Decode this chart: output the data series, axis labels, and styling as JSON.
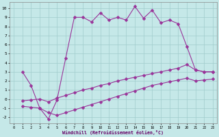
{
  "xlabel": "Windchill (Refroidissement éolien,°C)",
  "bg_color": "#c5e8e8",
  "grid_color": "#a0cccc",
  "line_color": "#993399",
  "xlim": [
    -0.5,
    23.5
  ],
  "ylim": [
    -2.7,
    10.7
  ],
  "xticks": [
    0,
    1,
    2,
    3,
    4,
    5,
    6,
    7,
    8,
    9,
    10,
    11,
    12,
    13,
    14,
    15,
    16,
    17,
    18,
    19,
    20,
    21,
    22,
    23
  ],
  "yticks": [
    -2,
    -1,
    0,
    1,
    2,
    3,
    4,
    5,
    6,
    7,
    8,
    9,
    10
  ],
  "line1_x": [
    1,
    2,
    3,
    4,
    5,
    6,
    7,
    8,
    9,
    10,
    11,
    12,
    13,
    14,
    15,
    16,
    17,
    18,
    19,
    20,
    21,
    22,
    23
  ],
  "line1_y": [
    3.0,
    1.5,
    -1.0,
    -2.2,
    -0.1,
    4.5,
    9.0,
    9.0,
    8.5,
    9.5,
    8.7,
    9.0,
    8.7,
    10.2,
    8.9,
    9.8,
    8.4,
    8.7,
    8.3,
    5.8,
    3.2,
    3.0,
    3.0
  ],
  "line2_x": [
    1,
    2,
    3,
    4,
    5,
    6,
    7,
    8,
    9,
    10,
    11,
    12,
    13,
    14,
    15,
    16,
    17,
    18,
    19,
    20,
    21,
    22,
    23
  ],
  "line2_y": [
    -0.2,
    -0.1,
    0.0,
    -0.3,
    0.1,
    0.4,
    0.7,
    1.0,
    1.2,
    1.5,
    1.7,
    2.0,
    2.2,
    2.4,
    2.6,
    2.8,
    3.0,
    3.2,
    3.4,
    3.8,
    3.2,
    3.0,
    3.0
  ],
  "line3_x": [
    1,
    2,
    3,
    4,
    5,
    6,
    7,
    8,
    9,
    10,
    11,
    12,
    13,
    14,
    15,
    16,
    17,
    18,
    19,
    20,
    21,
    22,
    23
  ],
  "line3_y": [
    -0.8,
    -0.9,
    -1.0,
    -1.5,
    -1.8,
    -1.5,
    -1.2,
    -0.9,
    -0.6,
    -0.3,
    0.0,
    0.3,
    0.6,
    0.9,
    1.2,
    1.5,
    1.7,
    1.9,
    2.1,
    2.3,
    2.0,
    2.1,
    2.2
  ]
}
